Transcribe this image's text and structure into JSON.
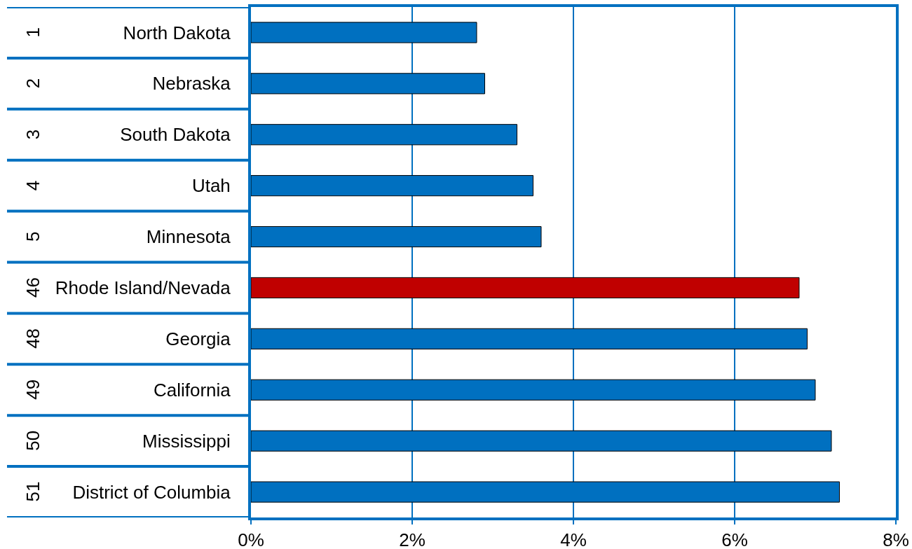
{
  "chart_data": {
    "type": "bar",
    "orientation": "horizontal",
    "categories": [
      "North Dakota",
      "Nebraska",
      "South Dakota",
      "Utah",
      "Minnesota",
      "Rhode Island/Nevada",
      "Georgia",
      "California",
      "Mississippi",
      "District of Columbia"
    ],
    "values": [
      2.8,
      2.9,
      3.3,
      3.5,
      3.6,
      6.8,
      6.9,
      7.0,
      7.2,
      7.3
    ],
    "colors": [
      "#0070c0",
      "#0070c0",
      "#0070c0",
      "#0070c0",
      "#0070c0",
      "#c00000",
      "#0070c0",
      "#0070c0",
      "#0070c0",
      "#0070c0"
    ],
    "xlim": [
      0,
      8
    ],
    "xticks": [
      {
        "value": 0,
        "label": "0%"
      },
      {
        "value": 2,
        "label": "2%"
      },
      {
        "value": 4,
        "label": "4%"
      },
      {
        "value": 6,
        "label": "6%"
      },
      {
        "value": 8,
        "label": "8%"
      }
    ],
    "grid": "x",
    "annotations": [
      "1",
      "2",
      "3",
      "4",
      "5",
      "46",
      "48",
      "49",
      "50",
      "51"
    ]
  }
}
